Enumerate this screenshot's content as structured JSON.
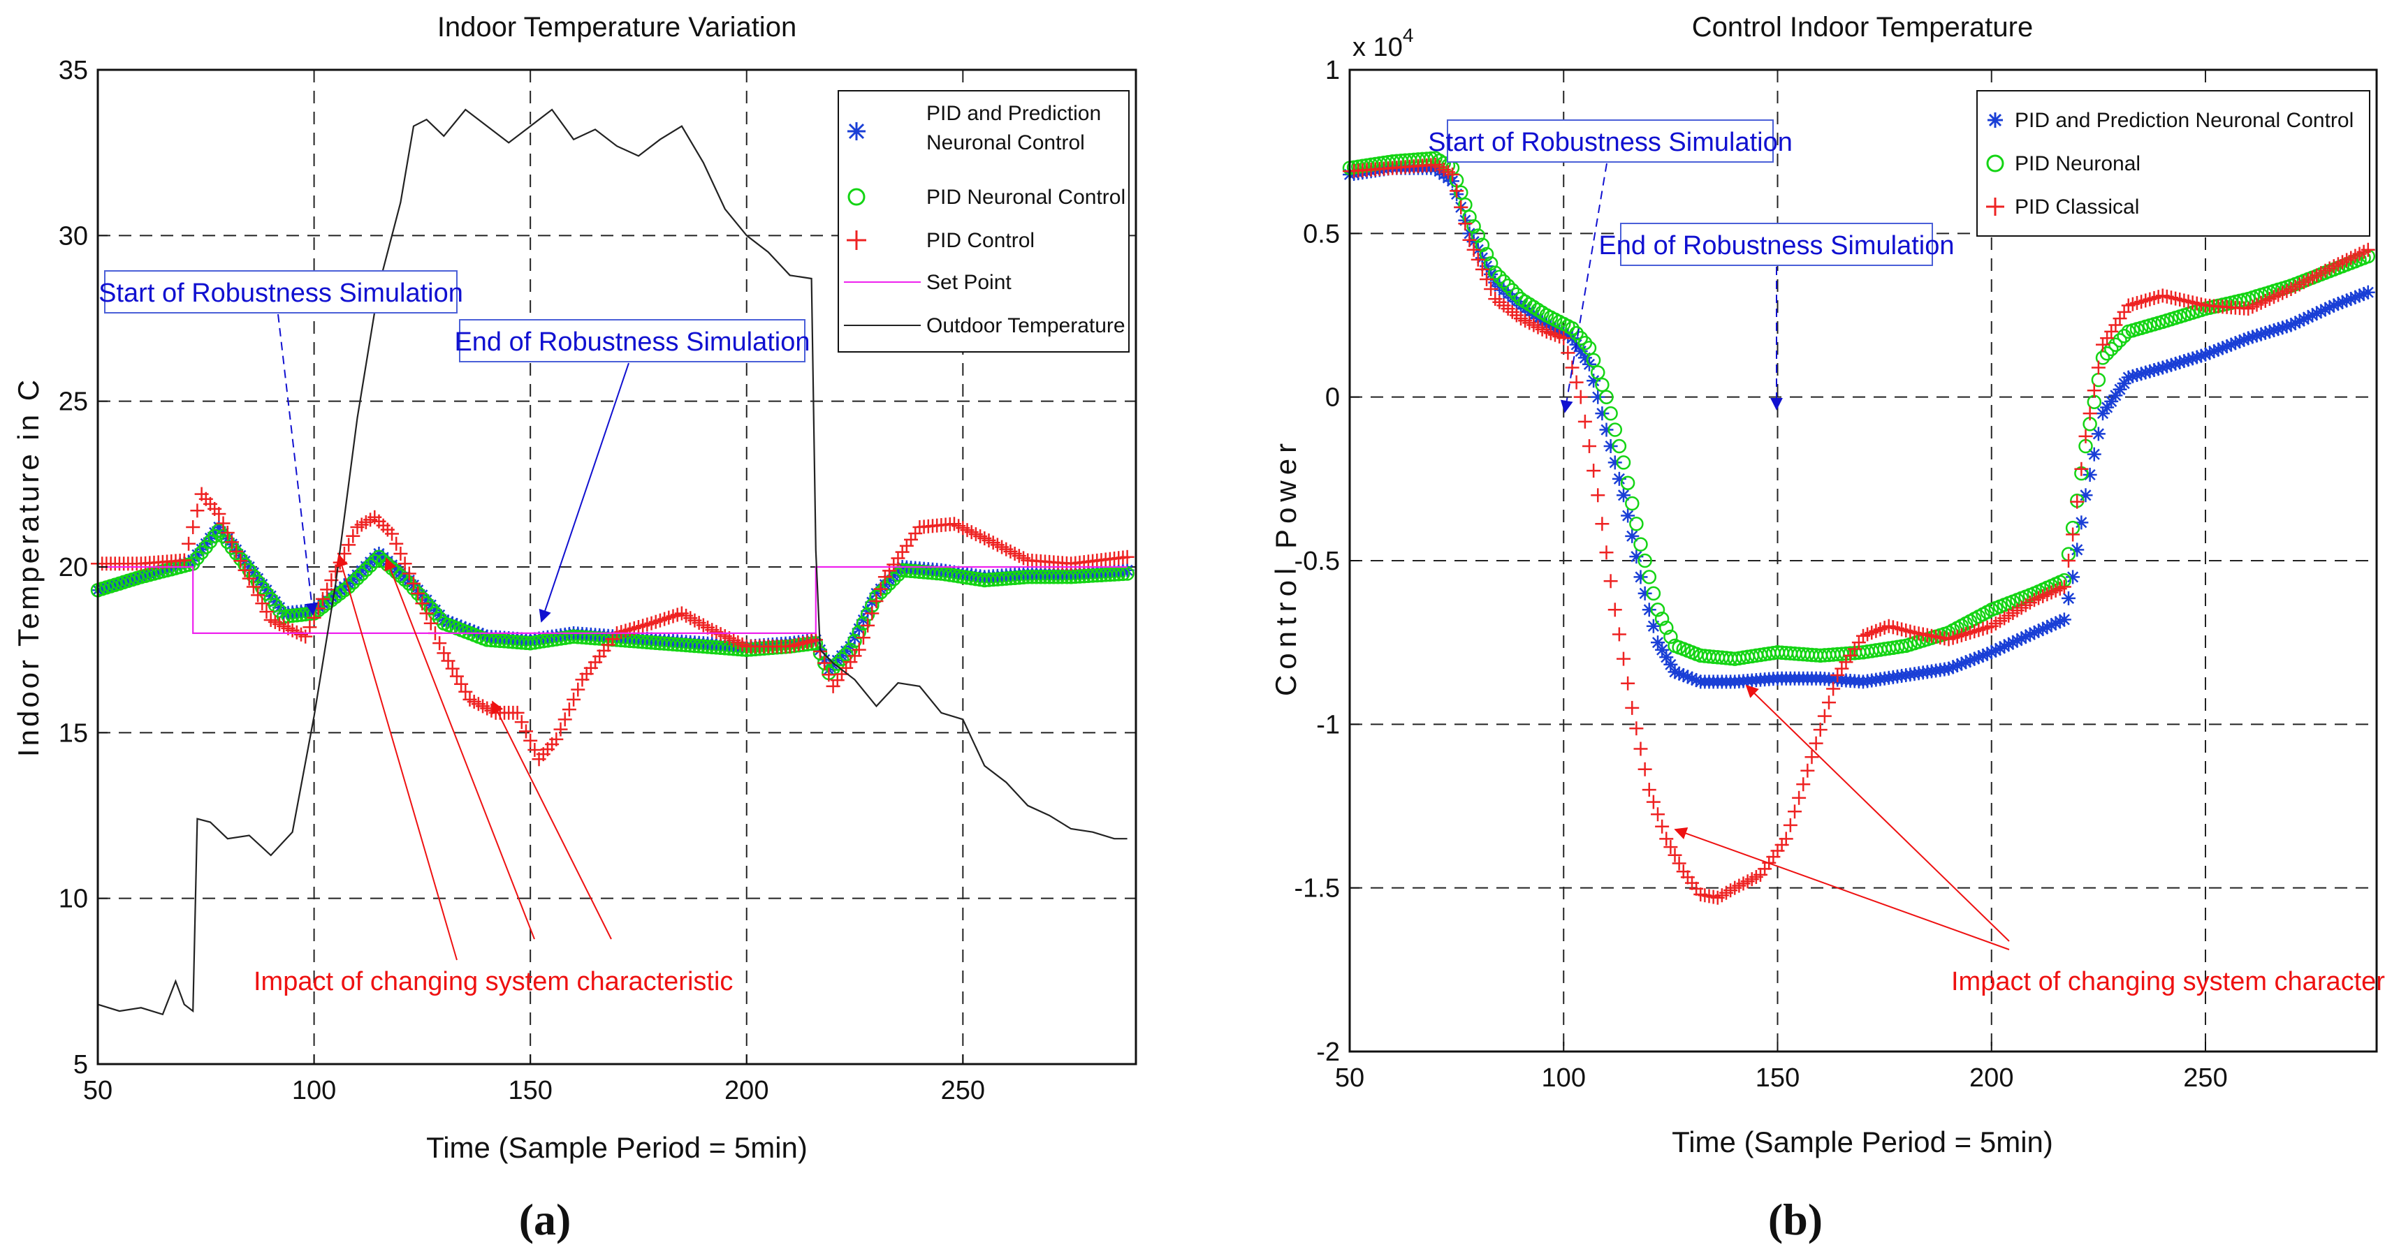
{
  "chart_data": [
    {
      "type": "line",
      "panel_label": "(a)",
      "title": "Indoor Temperature Variation",
      "xlabel": "Time (Sample Period = 5min)",
      "ylabel": "Indoor Temperature in C",
      "xlim": [
        50,
        290
      ],
      "ylim": [
        5,
        35
      ],
      "xticks": [
        50,
        100,
        150,
        200,
        250
      ],
      "yticks": [
        5,
        10,
        15,
        20,
        25,
        30,
        35
      ],
      "grid": true,
      "legend_position": "top-right",
      "series": [
        {
          "name": "PID and Prediction Neuronal Control",
          "legend_lines": [
            "PID and Prediction",
            "Neuronal Control"
          ],
          "marker": "asterisk",
          "color": "#1a3fd6",
          "x": [
            50,
            60,
            72,
            78,
            85,
            93,
            100,
            108,
            115,
            122,
            130,
            140,
            150,
            160,
            170,
            180,
            190,
            200,
            210,
            216,
            219,
            224,
            230,
            236,
            245,
            255,
            265,
            275,
            288
          ],
          "y": [
            19.3,
            19.7,
            20.2,
            21.2,
            20.0,
            18.6,
            18.7,
            19.5,
            20.4,
            19.6,
            18.4,
            17.9,
            17.8,
            18.0,
            17.9,
            17.8,
            17.7,
            17.6,
            17.7,
            17.8,
            16.9,
            17.6,
            19.2,
            20.0,
            19.9,
            19.7,
            19.8,
            19.8,
            19.9
          ]
        },
        {
          "name": "PID Neuronal Control",
          "legend_lines": [
            "PID Neuronal Control"
          ],
          "marker": "circle",
          "color": "#14d414",
          "x": [
            50,
            60,
            72,
            78,
            85,
            93,
            100,
            108,
            115,
            122,
            130,
            140,
            150,
            160,
            170,
            180,
            190,
            200,
            210,
            216,
            219,
            224,
            230,
            236,
            245,
            255,
            265,
            275,
            288
          ],
          "y": [
            19.3,
            19.7,
            20.1,
            21.1,
            19.9,
            18.5,
            18.6,
            19.4,
            20.3,
            19.5,
            18.3,
            17.8,
            17.7,
            17.9,
            17.8,
            17.7,
            17.6,
            17.5,
            17.6,
            17.7,
            16.8,
            17.5,
            19.1,
            19.9,
            19.8,
            19.6,
            19.7,
            19.7,
            19.8
          ]
        },
        {
          "name": "PID Control",
          "legend_lines": [
            "PID Control"
          ],
          "marker": "plus",
          "color": "#ee2222",
          "x": [
            50,
            60,
            70,
            74,
            78,
            84,
            90,
            98,
            104,
            110,
            114,
            118,
            124,
            130,
            136,
            142,
            147,
            152,
            156,
            162,
            170,
            178,
            185,
            192,
            200,
            210,
            216,
            220,
            226,
            232,
            240,
            248,
            256,
            265,
            275,
            288
          ],
          "y": [
            20.1,
            20.1,
            20.2,
            22.2,
            21.6,
            19.9,
            18.4,
            17.9,
            19.6,
            21.2,
            21.5,
            21.0,
            19.2,
            17.4,
            16.0,
            15.6,
            15.6,
            14.2,
            14.8,
            16.6,
            18.0,
            18.3,
            18.6,
            18.1,
            17.6,
            17.6,
            17.8,
            16.4,
            17.5,
            19.7,
            21.2,
            21.3,
            20.8,
            20.2,
            20.1,
            20.3
          ]
        },
        {
          "name": "Set Point",
          "legend_lines": [
            "Set Point"
          ],
          "marker": "none",
          "color": "#ee22ee",
          "x": [
            50,
            72,
            72,
            216,
            216,
            288
          ],
          "y": [
            20,
            20,
            18,
            18,
            20,
            20
          ]
        },
        {
          "name": "Outdoor Temperature",
          "legend_lines": [
            "Outdoor Temperature"
          ],
          "marker": "none",
          "color": "#222222",
          "x": [
            50,
            55,
            60,
            65,
            68,
            70,
            72,
            73,
            76,
            80,
            85,
            90,
            95,
            100,
            105,
            110,
            115,
            120,
            123,
            126,
            130,
            135,
            140,
            145,
            150,
            155,
            160,
            165,
            170,
            175,
            180,
            185,
            190,
            195,
            200,
            205,
            210,
            215,
            216,
            217,
            220,
            225,
            230,
            235,
            240,
            245,
            250,
            255,
            260,
            265,
            270,
            275,
            280,
            285,
            288
          ],
          "y": [
            6.8,
            6.6,
            6.7,
            6.5,
            7.5,
            6.8,
            6.6,
            12.4,
            12.3,
            11.8,
            11.9,
            11.3,
            12.0,
            15.5,
            19.5,
            24.5,
            28.5,
            31.0,
            33.3,
            33.5,
            33.0,
            33.8,
            33.3,
            32.8,
            33.3,
            33.8,
            32.9,
            33.2,
            32.7,
            32.4,
            32.9,
            33.3,
            32.2,
            30.8,
            30.0,
            29.5,
            28.8,
            28.7,
            20.5,
            17.5,
            17.1,
            16.6,
            15.8,
            16.5,
            16.4,
            15.6,
            15.4,
            14.0,
            13.5,
            12.8,
            12.5,
            12.1,
            12.0,
            11.8,
            11.8
          ]
        }
      ],
      "annotations": [
        {
          "text": "Start of Robustness Simulation",
          "color": "#1010d0",
          "boxed": true
        },
        {
          "text": "End of Robustness Simulation",
          "color": "#1010d0",
          "boxed": true
        },
        {
          "text": "Impact of changing system characteristic",
          "color": "#ee1111",
          "boxed": false
        }
      ]
    },
    {
      "type": "line",
      "panel_label": "(b)",
      "title": "Control Indoor Temperature",
      "exponent_label": "x 10",
      "exponent_power": "4",
      "xlabel": "Time (Sample Period = 5min)",
      "ylabel": "Control Power",
      "xlim": [
        50,
        290
      ],
      "ylim": [
        -2,
        1
      ],
      "xticks": [
        50,
        100,
        150,
        200,
        250
      ],
      "yticks": [
        -2,
        -1.5,
        -1,
        -0.5,
        0,
        0.5,
        1
      ],
      "ytick_labels": [
        "-2",
        "-1.5",
        "-1",
        "-0.5",
        "0",
        "0.5",
        "1"
      ],
      "grid": true,
      "legend_position": "top-right",
      "series": [
        {
          "name": "PID and Prediction Neuronal Control",
          "marker": "asterisk",
          "color": "#1a3fd6",
          "x": [
            50,
            60,
            70,
            74,
            78,
            84,
            90,
            96,
            102,
            106,
            110,
            114,
            118,
            122,
            126,
            132,
            140,
            150,
            160,
            170,
            180,
            190,
            200,
            210,
            217,
            219,
            222,
            226,
            232,
            240,
            250,
            260,
            270,
            280,
            288
          ],
          "y": [
            0.68,
            0.7,
            0.7,
            0.66,
            0.5,
            0.35,
            0.28,
            0.22,
            0.18,
            0.1,
            -0.1,
            -0.3,
            -0.55,
            -0.75,
            -0.84,
            -0.87,
            -0.87,
            -0.86,
            -0.86,
            -0.87,
            -0.85,
            -0.83,
            -0.78,
            -0.72,
            -0.68,
            -0.55,
            -0.3,
            -0.05,
            0.06,
            0.09,
            0.13,
            0.18,
            0.22,
            0.28,
            0.32
          ]
        },
        {
          "name": "PID Neuronal",
          "marker": "circle",
          "color": "#14d414",
          "x": [
            50,
            60,
            70,
            74,
            78,
            84,
            90,
            96,
            102,
            106,
            110,
            114,
            118,
            122,
            126,
            132,
            140,
            150,
            160,
            170,
            180,
            190,
            200,
            210,
            217,
            219,
            222,
            226,
            232,
            240,
            250,
            260,
            270,
            280,
            288
          ],
          "y": [
            0.7,
            0.72,
            0.73,
            0.7,
            0.55,
            0.38,
            0.3,
            0.25,
            0.21,
            0.15,
            0.0,
            -0.2,
            -0.45,
            -0.65,
            -0.76,
            -0.79,
            -0.8,
            -0.78,
            -0.79,
            -0.78,
            -0.76,
            -0.72,
            -0.65,
            -0.6,
            -0.56,
            -0.4,
            -0.15,
            0.12,
            0.2,
            0.23,
            0.27,
            0.3,
            0.34,
            0.39,
            0.43
          ]
        },
        {
          "name": "PID Classical",
          "marker": "plus",
          "color": "#ee2222",
          "x": [
            50,
            60,
            70,
            74,
            78,
            84,
            90,
            96,
            100,
            104,
            108,
            112,
            116,
            120,
            124,
            128,
            132,
            136,
            140,
            146,
            152,
            158,
            164,
            170,
            176,
            182,
            190,
            200,
            210,
            217,
            219,
            222,
            226,
            232,
            240,
            250,
            260,
            270,
            280,
            288
          ],
          "y": [
            0.69,
            0.7,
            0.71,
            0.68,
            0.48,
            0.3,
            0.24,
            0.2,
            0.18,
            0.0,
            -0.3,
            -0.65,
            -0.95,
            -1.2,
            -1.35,
            -1.45,
            -1.52,
            -1.53,
            -1.5,
            -1.46,
            -1.35,
            -1.1,
            -0.85,
            -0.73,
            -0.7,
            -0.72,
            -0.74,
            -0.7,
            -0.62,
            -0.58,
            -0.42,
            -0.12,
            0.16,
            0.28,
            0.31,
            0.28,
            0.27,
            0.33,
            0.4,
            0.45
          ]
        }
      ],
      "annotations": [
        {
          "text": "Start of Robustness Simulation",
          "color": "#1010d0",
          "boxed": true
        },
        {
          "text": "End of Robustness Simulation",
          "color": "#1010d0",
          "boxed": true
        },
        {
          "text": "Impact of changing system characteristic",
          "color": "#ee1111",
          "boxed": false
        }
      ]
    }
  ]
}
